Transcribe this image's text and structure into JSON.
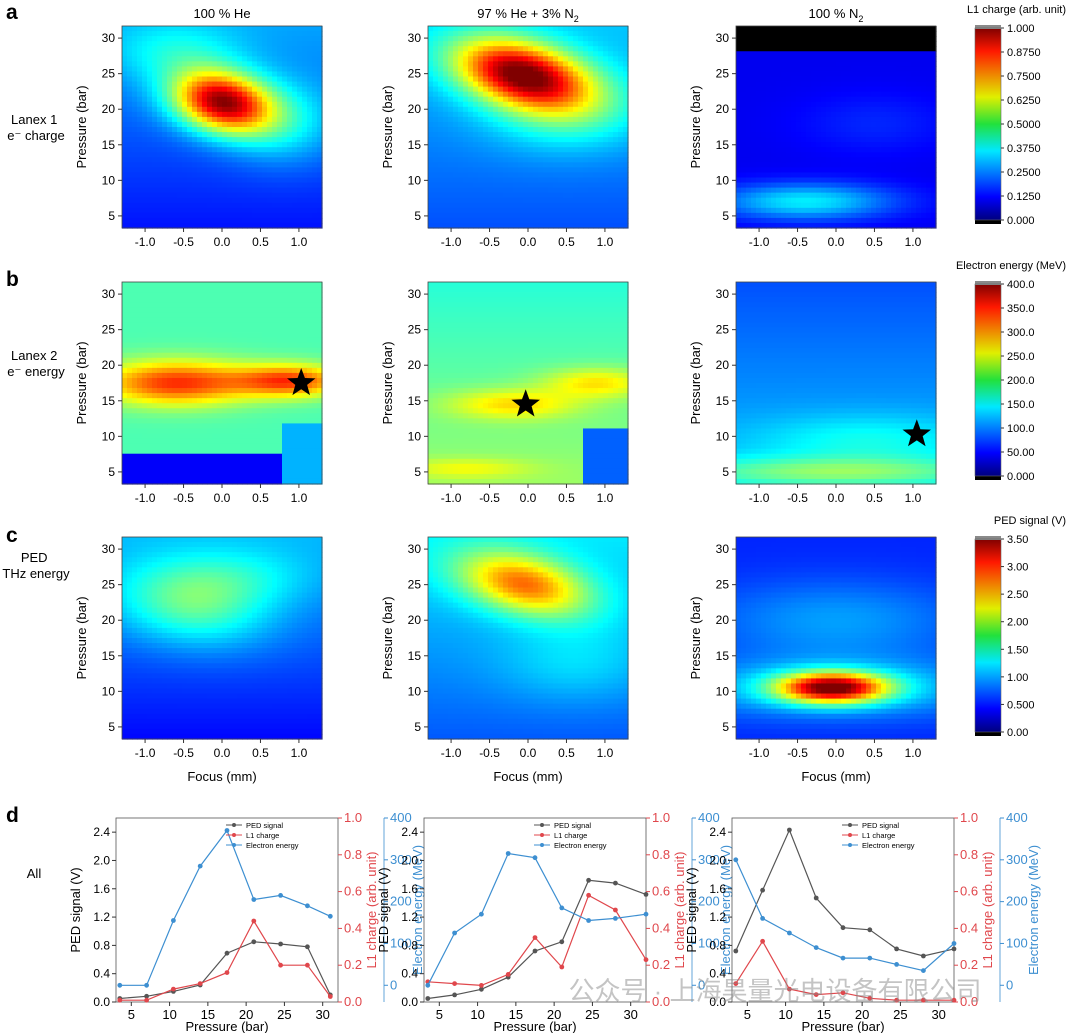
{
  "figure": {
    "panel_letters": [
      "a",
      "b",
      "c",
      "d"
    ],
    "column_titles": [
      "100 % He",
      "97 % He + 3% N",
      "100 % N"
    ],
    "column_title_subscripts": [
      "",
      "2",
      "2"
    ],
    "row_labels": [
      [
        "Lanex 1",
        "e⁻ charge"
      ],
      [
        "Lanex 2",
        "e⁻ energy"
      ],
      [
        "PED",
        "THz energy"
      ],
      [
        "All"
      ]
    ],
    "watermark": "公众号 · 上海昊量光电设备有限公司"
  },
  "chart_data": [
    {
      "type": "heatmap",
      "title": "Lanex 1 e⁻ charge",
      "xlabel": "",
      "ylabel": "Pressure (bar)",
      "xlim": [
        -1.3,
        1.3
      ],
      "ylim": [
        3.3,
        31.7
      ],
      "xticks": [
        "-1.0",
        "-0.5",
        "0.0",
        "0.5",
        "1.0"
      ],
      "yticks": [
        "5",
        "10",
        "15",
        "20",
        "25",
        "30"
      ],
      "xtick_values": [
        -1.0,
        -0.5,
        0.0,
        0.5,
        1.0
      ],
      "ytick_values": [
        5,
        10,
        15,
        20,
        25,
        30
      ],
      "colorbar": {
        "label": "L1 charge (arb. unit)",
        "ticks": [
          "1.000",
          "0.8750",
          "0.7500",
          "0.6250",
          "0.5000",
          "0.3750",
          "0.2500",
          "0.1250",
          "0.000"
        ],
        "range": [
          0,
          1
        ]
      },
      "panels": [
        {
          "column": "100 % He",
          "bg": 0.2,
          "peaks": [
            {
              "x": 0.0,
              "y": 21.0,
              "a": 0.73,
              "sx": 0.45,
              "sy": 3.0,
              "tilt": -0.15
            },
            {
              "x": -0.6,
              "y": 28.0,
              "a": 0.12,
              "sx": 0.6,
              "sy": 3.0,
              "tilt": 0
            },
            {
              "x": 0.8,
              "y": 18.0,
              "a": 0.15,
              "sx": 0.5,
              "sy": 4.0,
              "tilt": 0
            }
          ],
          "gradient": {
            "dy": 0.005
          }
        },
        {
          "column": "97 % He + 3% N2",
          "bg": 0.25,
          "peaks": [
            {
              "x": -0.1,
              "y": 25.0,
              "a": 0.7,
              "sx": 0.6,
              "sy": 3.2,
              "tilt": -0.2
            },
            {
              "x": 0.5,
              "y": 20.0,
              "a": 0.18,
              "sx": 0.7,
              "sy": 4.0,
              "tilt": 0
            }
          ],
          "gradient": {
            "dy": 0.004
          }
        },
        {
          "column": "100 % N2",
          "bg": 0.11,
          "mask_above": 28,
          "peaks": [
            {
              "x": -0.4,
              "y": 7.0,
              "a": 0.25,
              "sx": 0.8,
              "sy": 1.8,
              "tilt": 0
            },
            {
              "x": 0.5,
              "y": 18.0,
              "a": 0.05,
              "sx": 0.7,
              "sy": 3.0,
              "tilt": 0
            }
          ],
          "gradient": {
            "dy": 0.0
          }
        }
      ]
    },
    {
      "type": "heatmap",
      "title": "Lanex 2 e⁻ energy",
      "xlabel": "",
      "ylabel": "Pressure (bar)",
      "xlim": [
        -1.3,
        1.3
      ],
      "ylim": [
        3.3,
        31.7
      ],
      "xticks": [
        "-1.0",
        "-0.5",
        "0.0",
        "0.5",
        "1.0"
      ],
      "yticks": [
        "5",
        "10",
        "15",
        "20",
        "25",
        "30"
      ],
      "xtick_values": [
        -1.0,
        -0.5,
        0.0,
        0.5,
        1.0
      ],
      "ytick_values": [
        5,
        10,
        15,
        20,
        25,
        30
      ],
      "colorbar": {
        "label": "Electron energy (MeV)",
        "ticks": [
          "400.0",
          "350.0",
          "300.0",
          "250.0",
          "200.0",
          "150.0",
          "100.0",
          "50.00",
          "0.000"
        ],
        "range": [
          0,
          400
        ]
      },
      "panels": [
        {
          "column": "100 % He",
          "bg": 0.45,
          "low_below": 7.5,
          "low_value": 0.12,
          "notch": {
            "x0": 0.8,
            "y1": 11.5,
            "value": 0.3
          },
          "peaks": [
            {
              "x": -0.6,
              "y": 17.5,
              "a": 0.38,
              "sx": 0.7,
              "sy": 2.2,
              "tilt": 0
            },
            {
              "x": 0.9,
              "y": 17.8,
              "a": 0.35,
              "sx": 0.5,
              "sy": 1.6,
              "tilt": 0
            }
          ],
          "gradient": {
            "dy": 0.0
          },
          "star": {
            "x": 1.03,
            "y": 17.5
          }
        },
        {
          "column": "97 % He + 3% N2",
          "bg": 0.48,
          "notch": {
            "x0": 0.7,
            "y1": 11.0,
            "value": 0.22
          },
          "peaks": [
            {
              "x": -0.2,
              "y": 14.5,
              "a": 0.18,
              "sx": 0.6,
              "sy": 1.5,
              "tilt": 0
            },
            {
              "x": 0.9,
              "y": 17.5,
              "a": 0.18,
              "sx": 0.5,
              "sy": 1.5,
              "tilt": 0
            },
            {
              "x": -0.8,
              "y": 5.5,
              "a": 0.1,
              "sx": 0.6,
              "sy": 1.0,
              "tilt": 0
            }
          ],
          "gradient": {
            "dy": -0.004
          },
          "star": {
            "x": -0.03,
            "y": 14.5
          }
        },
        {
          "column": "100 % N2",
          "bg": 0.27,
          "peaks": [
            {
              "x": 0.0,
              "y": 5.0,
              "a": 0.2,
              "sx": 1.5,
              "sy": 1.5,
              "tilt": 0
            },
            {
              "x": 0.4,
              "y": 9.5,
              "a": 0.1,
              "sx": 1.0,
              "sy": 2.5,
              "tilt": 0
            }
          ],
          "gradient": {
            "dy": -0.004
          },
          "star": {
            "x": 1.05,
            "y": 10.3
          }
        }
      ]
    },
    {
      "type": "heatmap",
      "title": "PED THz energy",
      "xlabel": "Focus (mm)",
      "ylabel": "Pressure (bar)",
      "xlim": [
        -1.3,
        1.3
      ],
      "ylim": [
        3.3,
        31.7
      ],
      "xticks": [
        "-1.0",
        "-0.5",
        "0.0",
        "0.5",
        "1.0"
      ],
      "yticks": [
        "5",
        "10",
        "15",
        "20",
        "25",
        "30"
      ],
      "xtick_values": [
        -1.0,
        -0.5,
        0.0,
        0.5,
        1.0
      ],
      "ytick_values": [
        5,
        10,
        15,
        20,
        25,
        30
      ],
      "colorbar": {
        "label": "PED signal (V)",
        "ticks": [
          "3.50",
          "3.00",
          "2.50",
          "2.00",
          "1.50",
          "1.00",
          "0.500",
          "0.00"
        ],
        "range": [
          0,
          3.5
        ]
      },
      "panels": [
        {
          "column": "100 % He",
          "bg": 0.2,
          "peaks": [
            {
              "x": -0.4,
              "y": 22.0,
              "a": 0.22,
              "sx": 0.7,
              "sy": 4.0,
              "tilt": -0.1
            },
            {
              "x": 0.2,
              "y": 26.0,
              "a": 0.1,
              "sx": 0.7,
              "sy": 3.0,
              "tilt": 0
            }
          ],
          "gradient": {
            "dy": 0.006
          }
        },
        {
          "column": "97 % He + 3% N2",
          "bg": 0.27,
          "peaks": [
            {
              "x": -0.05,
              "y": 25.0,
              "a": 0.45,
              "sx": 0.6,
              "sy": 3.0,
              "tilt": -0.2
            },
            {
              "x": 0.6,
              "y": 14.0,
              "a": 0.08,
              "sx": 0.7,
              "sy": 4.0,
              "tilt": 0
            }
          ],
          "gradient": {
            "dy": 0.005
          }
        },
        {
          "column": "100 % N2",
          "bg": 0.16,
          "peaks": [
            {
              "x": -0.05,
              "y": 10.5,
              "a": 0.72,
              "sx": 0.5,
              "sy": 1.5,
              "tilt": 0
            },
            {
              "x": 0.0,
              "y": 10.5,
              "a": 0.18,
              "sx": 1.5,
              "sy": 3.0,
              "tilt": 0
            },
            {
              "x": 0.0,
              "y": 20.0,
              "a": 0.12,
              "sx": 1.2,
              "sy": 4.0,
              "tilt": 0
            }
          ],
          "gradient": {
            "dy": 0.0
          }
        }
      ]
    },
    {
      "type": "line",
      "title": "All",
      "xlabel": "Pressure (bar)",
      "ylabel_left": "PED signal (V)",
      "ylabel_right1": "L1 charge (arb. unit)",
      "ylabel_right2": "Electron energy (MeV)",
      "xlim": [
        3,
        32
      ],
      "xticks": [
        "5",
        "10",
        "15",
        "20",
        "25",
        "30"
      ],
      "xtick_values": [
        5,
        10,
        15,
        20,
        25,
        30
      ],
      "ylim_left": [
        0,
        2.6
      ],
      "yticks_left": [
        "0.0",
        "0.4",
        "0.8",
        "1.2",
        "1.6",
        "2.0",
        "2.4"
      ],
      "ylim_right1": [
        0,
        1.0
      ],
      "yticks_right1": [
        "0.0",
        "0.2",
        "0.4",
        "0.6",
        "0.8",
        "1.0"
      ],
      "ylim_right2": [
        -40,
        400
      ],
      "yticks_right2": [
        "0",
        "100",
        "200",
        "300",
        "400"
      ],
      "legend": [
        "PED signal",
        "L1 charge",
        "Electron energy"
      ],
      "legend_location": "top-right",
      "colors": {
        "ped": "#555555",
        "l1": "#e0474c",
        "energy": "#3d8fd1"
      },
      "panels": [
        {
          "column": "100 % He",
          "x": [
            3.5,
            7,
            10.5,
            14,
            17.5,
            21,
            24.5,
            28,
            31
          ],
          "series": [
            {
              "name": "PED signal",
              "axis": "left",
              "values": [
                0.05,
                0.08,
                0.15,
                0.24,
                0.69,
                0.85,
                0.82,
                0.78,
                0.1
              ]
            },
            {
              "name": "L1 charge",
              "axis": "right1",
              "values": [
                0.01,
                0.01,
                0.07,
                0.1,
                0.16,
                0.44,
                0.2,
                0.2,
                0.03
              ]
            },
            {
              "name": "Electron energy",
              "axis": "right2",
              "values": [
                0,
                0,
                155,
                285,
                370,
                205,
                215,
                190,
                165
              ]
            }
          ]
        },
        {
          "column": "97 % He + 3% N2",
          "x": [
            3.5,
            7,
            10.5,
            14,
            17.5,
            21,
            24.5,
            28,
            32
          ],
          "series": [
            {
              "name": "PED signal",
              "axis": "left",
              "values": [
                0.05,
                0.1,
                0.18,
                0.35,
                0.72,
                0.85,
                1.72,
                1.68,
                1.52
              ]
            },
            {
              "name": "L1 charge",
              "axis": "right1",
              "values": [
                0.11,
                0.1,
                0.09,
                0.15,
                0.35,
                0.19,
                0.58,
                0.5,
                0.23
              ]
            },
            {
              "name": "Electron energy",
              "axis": "right2",
              "values": [
                0,
                125,
                170,
                315,
                305,
                185,
                155,
                160,
                170
              ]
            }
          ]
        },
        {
          "column": "100 % N2",
          "x": [
            3.5,
            7,
            10.5,
            14,
            17.5,
            21,
            24.5,
            28,
            32
          ],
          "series": [
            {
              "name": "PED signal",
              "axis": "left",
              "values": [
                0.72,
                1.58,
                2.43,
                1.47,
                1.05,
                1.02,
                0.75,
                0.65,
                0.75
              ]
            },
            {
              "name": "L1 charge",
              "axis": "right1",
              "values": [
                0.1,
                0.33,
                0.07,
                0.04,
                0.05,
                0.02,
                0.01,
                0.01,
                0.01
              ]
            },
            {
              "name": "Electron energy",
              "axis": "right2",
              "values": [
                300,
                160,
                125,
                90,
                65,
                65,
                50,
                35,
                100
              ]
            }
          ]
        }
      ]
    }
  ]
}
